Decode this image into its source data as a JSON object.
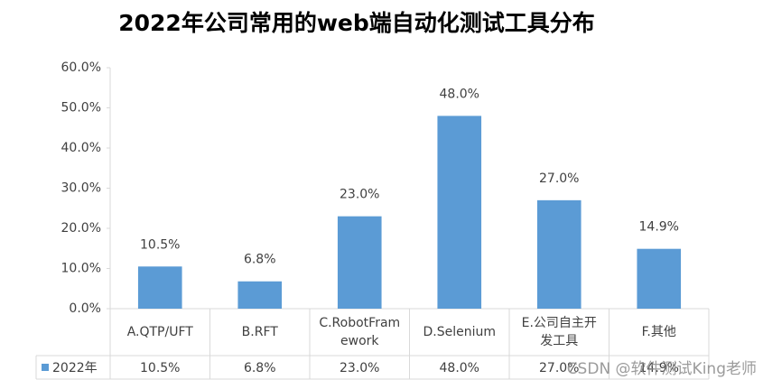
{
  "chart_data": {
    "type": "bar",
    "title": "2022年公司常用的web端自动化测试工具分布",
    "categories": [
      "A.QTP/UFT",
      "B.RFT",
      "C.RobotFramework",
      "D.Selenium",
      "E.公司自主开发工具",
      "F.其他"
    ],
    "series": [
      {
        "name": "2022年",
        "color": "#5b9bd5",
        "values": [
          10.5,
          6.8,
          23.0,
          48.0,
          27.0,
          14.9
        ],
        "value_labels": [
          "10.5%",
          "6.8%",
          "23.0%",
          "48.0%",
          "27.0%",
          "14.9%"
        ]
      }
    ],
    "ylim": [
      0,
      60
    ],
    "yticks": [
      {
        "value": 0,
        "label": "0.0%"
      },
      {
        "value": 10,
        "label": "10.0%"
      },
      {
        "value": 20,
        "label": "20.0%"
      },
      {
        "value": 30,
        "label": "30.0%"
      },
      {
        "value": 40,
        "label": "40.0%"
      },
      {
        "value": 50,
        "label": "50.0%"
      },
      {
        "value": 60,
        "label": "60.0%"
      }
    ],
    "grid": false,
    "watermark": "CSDN @软件测试King老师"
  }
}
